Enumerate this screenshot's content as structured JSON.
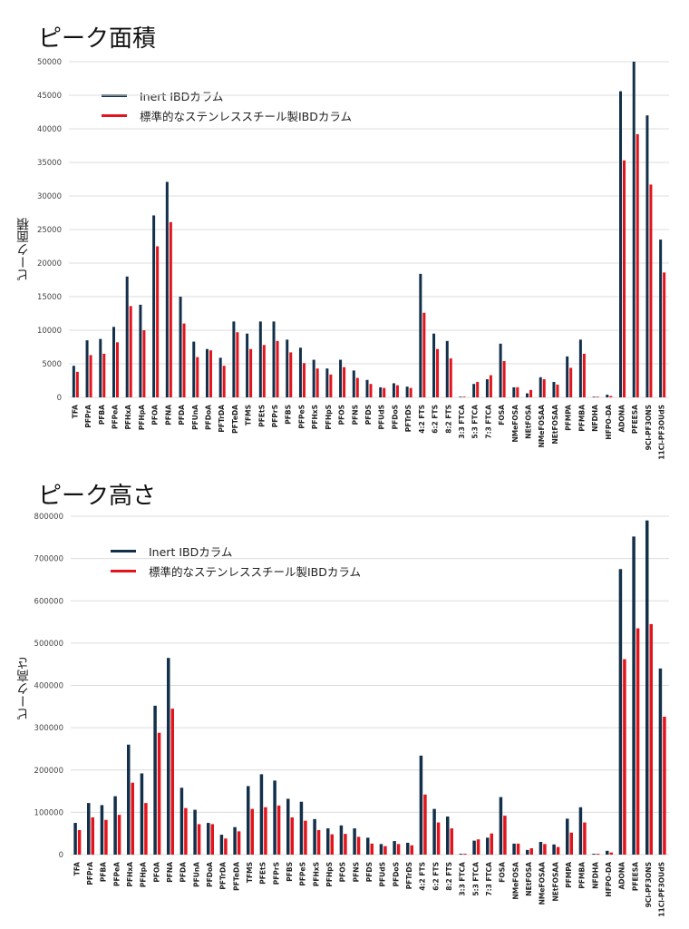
{
  "colors": {
    "inert": "#13304a",
    "stainless": "#e3141b",
    "grid": "#dcdcdc"
  },
  "chart_data": [
    {
      "type": "bar",
      "title": "ピーク面積",
      "xlabel": "",
      "ylabel": "ピーク面積",
      "ylim": [
        0,
        50000
      ],
      "yticks": [
        0,
        5000,
        10000,
        15000,
        20000,
        25000,
        30000,
        35000,
        40000,
        45000,
        50000
      ],
      "legend_position": "top-left",
      "categories": [
        "TFA",
        "PFPrA",
        "PFBA",
        "PFPeA",
        "PFHxA",
        "PFHpA",
        "PFOA",
        "PFNA",
        "PFDA",
        "PFUnA",
        "PFDoA",
        "PFTrDA",
        "PFTeDA",
        "TFMS",
        "PFEtS",
        "PFPrS",
        "PFBS",
        "PFPeS",
        "PFHxS",
        "PFHpS",
        "PFOS",
        "PFNS",
        "PFDS",
        "PFUdS",
        "PFDoS",
        "PFTrDS",
        "4:2 FTS",
        "6:2 FTS",
        "8:2 FTS",
        "3:3 FTCA",
        "5:3 FTCA",
        "7:3 FTCA",
        "FOSA",
        "NMeFOSA",
        "NEtFOSA",
        "NMeFOSAA",
        "NEtFOSAA",
        "PFMPA",
        "PFMBA",
        "NFDHA",
        "HFPO-DA",
        "ADONA",
        "PFEESA",
        "9Cl-PF3ONS",
        "11Cl-PF3OUdS"
      ],
      "series": [
        {
          "name": "Inert IBDカラム",
          "color": "#13304a",
          "values": [
            4700,
            8500,
            8700,
            10500,
            18000,
            13800,
            27100,
            32100,
            15000,
            8300,
            7200,
            5900,
            11300,
            9500,
            11300,
            11300,
            8600,
            7400,
            5600,
            4300,
            5600,
            4000,
            2600,
            1500,
            2100,
            1600,
            18400,
            9500,
            8400,
            100,
            2000,
            2700,
            8000,
            1500,
            600,
            3000,
            2300,
            6100,
            8600,
            100,
            400,
            45600,
            50000,
            42000,
            23500
          ]
        },
        {
          "name": "標準的なステンレススチール製IBDカラム",
          "color": "#e3141b",
          "values": [
            3800,
            6300,
            6500,
            8200,
            13600,
            10000,
            22500,
            26100,
            11000,
            6000,
            7000,
            4700,
            9700,
            7200,
            7800,
            8400,
            6700,
            5100,
            4300,
            3400,
            4500,
            2900,
            2000,
            1400,
            1800,
            1400,
            12600,
            7200,
            5800,
            100,
            2300,
            3300,
            5400,
            1500,
            1100,
            2700,
            1900,
            4400,
            6500,
            100,
            200,
            35300,
            39200,
            31700,
            18600
          ]
        }
      ]
    },
    {
      "type": "bar",
      "title": "ピーク高さ",
      "xlabel": "",
      "ylabel": "ピーク高さ",
      "ylim": [
        0,
        800000
      ],
      "yticks": [
        0,
        100000,
        200000,
        300000,
        400000,
        500000,
        600000,
        700000,
        800000
      ],
      "legend_position": "top-left",
      "categories": [
        "TFA",
        "PFPrA",
        "PFBA",
        "PFPeA",
        "PFHxA",
        "PFHpA",
        "PFOA",
        "PFNA",
        "PFDA",
        "PFUnA",
        "PFDoA",
        "PFTrDA",
        "PFTeDA",
        "TFMS",
        "PFEtS",
        "PFPrS",
        "PFBS",
        "PFPeS",
        "PFHxS",
        "PFHpS",
        "PFOS",
        "PFNS",
        "PFDS",
        "PFUdS",
        "PFDoS",
        "PFTrDS",
        "4:2 FTS",
        "6:2 FTS",
        "8:2 FTS",
        "3:3 FTCA",
        "5:3 FTCA",
        "7:3 FTCA",
        "FOSA",
        "NMeFOSA",
        "NEtFOSA",
        "NMeFOSAA",
        "NEtFOSAA",
        "PFMPA",
        "PFMBA",
        "NFDHA",
        "HFPO-DA",
        "ADONA",
        "PFEESA",
        "9Cl-PF3ONS",
        "11Cl-PF3OUdS"
      ],
      "series": [
        {
          "name": "Inert IBDカラム",
          "color": "#13304a",
          "values": [
            75000,
            122000,
            117000,
            138000,
            260000,
            192000,
            352000,
            465000,
            158000,
            106000,
            75000,
            47000,
            65000,
            162000,
            190000,
            175000,
            132000,
            125000,
            84000,
            62000,
            69000,
            62000,
            40000,
            25000,
            32000,
            28000,
            234000,
            108000,
            90000,
            2000,
            33000,
            40000,
            136000,
            26000,
            11000,
            30000,
            24000,
            85000,
            112000,
            2000,
            9000,
            675000,
            752000,
            790000,
            440000
          ]
        },
        {
          "name": "標準的なステンレススチール製IBDカラム",
          "color": "#e3141b",
          "values": [
            58000,
            88000,
            82000,
            94000,
            170000,
            122000,
            288000,
            345000,
            110000,
            72000,
            72000,
            38000,
            55000,
            108000,
            112000,
            116000,
            88000,
            80000,
            58000,
            48000,
            49000,
            42000,
            26000,
            20000,
            25000,
            22000,
            142000,
            76000,
            62000,
            2000,
            36000,
            50000,
            92000,
            26000,
            15000,
            25000,
            18000,
            52000,
            76000,
            2000,
            5000,
            462000,
            535000,
            545000,
            326000
          ]
        }
      ]
    }
  ]
}
